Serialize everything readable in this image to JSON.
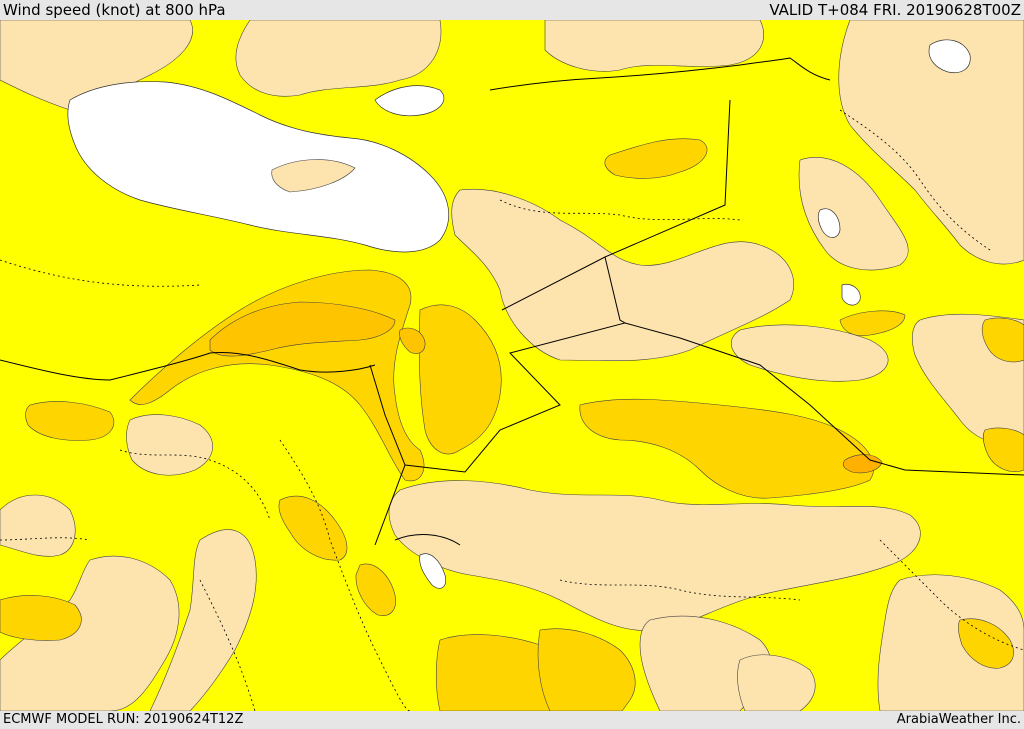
{
  "header": {
    "title": "Wind speed (knot) at 800 hPa",
    "valid": "VALID T+084 FRI. 20190628T00Z"
  },
  "footer": {
    "model_run": "ECMWF MODEL RUN: 20190624T12Z",
    "credit": "ArabiaWeather Inc."
  },
  "colors": {
    "sea": "#ffffff",
    "band_light": "#fde3ae",
    "band_yellow": "#ffff00",
    "band_gold": "#ffd500",
    "band_orange": "#ffc400",
    "band_deep": "#ffb000",
    "border": "#000000"
  },
  "icons": [
    "wind-speed-map"
  ]
}
